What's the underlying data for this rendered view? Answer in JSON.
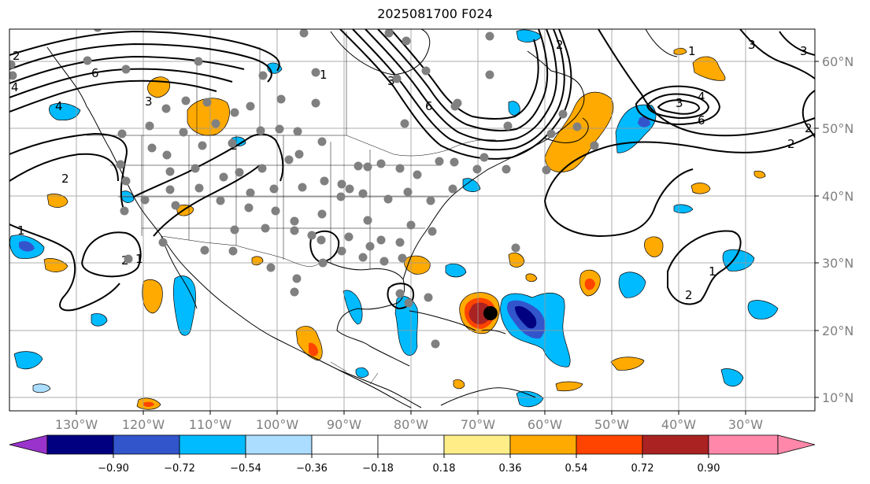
{
  "title": "2025081700 F024",
  "lon_labels": [
    "130°W",
    "120°W",
    "110°W",
    "100°W",
    "90°W",
    "80°W",
    "70°W",
    "60°W",
    "50°W",
    "40°W",
    "30°W"
  ],
  "lat_labels": [
    "60°N",
    "50°N",
    "40°N",
    "30°N",
    "20°N",
    "10°N"
  ],
  "colorbar": {
    "ticks": [
      "−0.90",
      "−0.72",
      "−0.54",
      "−0.36",
      "−0.18",
      "0.18",
      "0.36",
      "0.54",
      "0.72",
      "0.90"
    ],
    "colors": [
      "#9933cc",
      "#000080",
      "#3355cc",
      "#00bbff",
      "#aaddff",
      "#ffffff",
      "#ffee88",
      "#ffaa00",
      "#ff4400",
      "#aa2222",
      "#ff88aa"
    ]
  },
  "contour_labels": [
    "2",
    "6",
    "4",
    "4",
    "3",
    "2",
    "1",
    "2",
    "2",
    "1",
    "6",
    "3",
    "2",
    "1",
    "3",
    "4",
    "6",
    "2",
    "3",
    "2",
    "1",
    "1",
    "2",
    "3"
  ],
  "storm_marker": "tropical-cyclone-center",
  "stations": [
    [
      14,
      82
    ],
    [
      16,
      96
    ],
    [
      111,
      77
    ],
    [
      160,
      88
    ],
    [
      252,
      78
    ],
    [
      124,
      35
    ],
    [
      386,
      42
    ],
    [
      494,
      42
    ],
    [
      516,
      52
    ],
    [
      622,
      46
    ],
    [
      541,
      90
    ],
    [
      622,
      95
    ],
    [
      504,
      100
    ],
    [
      401,
      92
    ],
    [
      581,
      131
    ],
    [
      401,
      131
    ],
    [
      334,
      96
    ],
    [
      357,
      126
    ],
    [
      318,
      135
    ],
    [
      298,
      143
    ],
    [
      263,
      130
    ],
    [
      236,
      128
    ],
    [
      211,
      138
    ],
    [
      190,
      160
    ],
    [
      155,
      170
    ],
    [
      193,
      188
    ],
    [
      153,
      209
    ],
    [
      212,
      197
    ],
    [
      257,
      185
    ],
    [
      248,
      214
    ],
    [
      216,
      218
    ],
    [
      160,
      230
    ],
    [
      216,
      241
    ],
    [
      253,
      239
    ],
    [
      284,
      225
    ],
    [
      304,
      219
    ],
    [
      333,
      214
    ],
    [
      367,
      203
    ],
    [
      380,
      196
    ],
    [
      409,
      180
    ],
    [
      378,
      167
    ],
    [
      355,
      164
    ],
    [
      331,
      166
    ],
    [
      295,
      182
    ],
    [
      274,
      157
    ],
    [
      233,
      168
    ],
    [
      158,
      268
    ],
    [
      223,
      261
    ],
    [
      184,
      254
    ],
    [
      280,
      255
    ],
    [
      318,
      245
    ],
    [
      348,
      240
    ],
    [
      384,
      238
    ],
    [
      412,
      230
    ],
    [
      434,
      234
    ],
    [
      455,
      211
    ],
    [
      467,
      212
    ],
    [
      484,
      208
    ],
    [
      508,
      214
    ],
    [
      530,
      222
    ],
    [
      558,
      205
    ],
    [
      577,
      206
    ],
    [
      606,
      215
    ],
    [
      575,
      240
    ],
    [
      547,
      255
    ],
    [
      518,
      244
    ],
    [
      493,
      253
    ],
    [
      461,
      246
    ],
    [
      444,
      240
    ],
    [
      433,
      250
    ],
    [
      409,
      272
    ],
    [
      374,
      281
    ],
    [
      350,
      268
    ],
    [
      316,
      264
    ],
    [
      298,
      292
    ],
    [
      337,
      290
    ],
    [
      374,
      293
    ],
    [
      396,
      299
    ],
    [
      408,
      305
    ],
    [
      443,
      301
    ],
    [
      467,
      280
    ],
    [
      484,
      305
    ],
    [
      508,
      308
    ],
    [
      522,
      286
    ],
    [
      549,
      294
    ],
    [
      434,
      319
    ],
    [
      461,
      327
    ],
    [
      488,
      332
    ],
    [
      511,
      328
    ],
    [
      470,
      313
    ],
    [
      410,
      334
    ],
    [
      377,
      354
    ],
    [
      374,
      371
    ],
    [
      344,
      340
    ],
    [
      260,
      318
    ],
    [
      296,
      319
    ],
    [
      207,
      308
    ],
    [
      163,
      329
    ],
    [
      519,
      385
    ],
    [
      544,
      378
    ],
    [
      508,
      373
    ],
    [
      553,
      437
    ],
    [
      655,
      315
    ],
    [
      615,
      200
    ],
    [
      643,
      215
    ],
    [
      694,
      216
    ],
    [
      700,
      170
    ],
    [
      715,
      145
    ],
    [
      733,
      161
    ],
    [
      755,
      185
    ],
    [
      645,
      160
    ],
    [
      578,
      135
    ],
    [
      514,
      157
    ]
  ]
}
